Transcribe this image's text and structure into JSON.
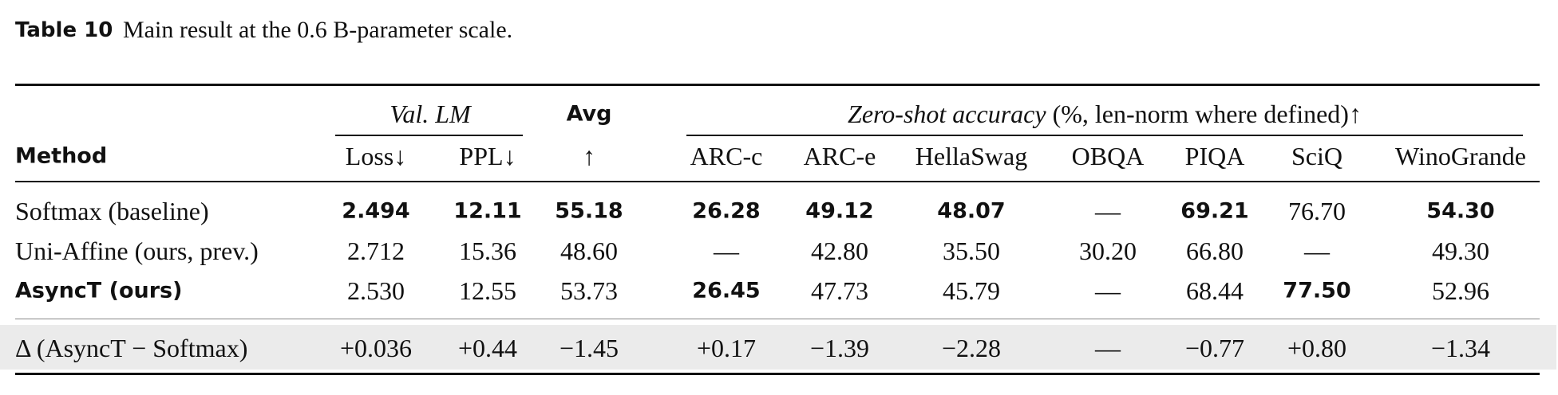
{
  "caption": {
    "label": "Table 10",
    "text": "Main result at the 0.6 B-parameter scale."
  },
  "table": {
    "header": {
      "val_lm": "Val. LM",
      "avg": "Avg",
      "zero_shot": "Zero-shot accuracy",
      "zero_shot_note": "(%, len-norm where defined)↑",
      "columns": [
        "Method",
        "Loss↓",
        "PPL↓",
        "↑",
        "ARC-c",
        "ARC-e",
        "HellaSwag",
        "OBQA",
        "PIQA",
        "SciQ",
        "WinoGrande"
      ]
    },
    "rows": [
      [
        "Softmax (baseline)",
        "2.494",
        "12.11",
        "55.18",
        "26.28",
        "49.12",
        "48.07",
        "—",
        "69.21",
        "76.70",
        "54.30"
      ],
      [
        "Uni-Affine (ours, prev.)",
        "2.712",
        "15.36",
        "48.60",
        "—",
        "42.80",
        "35.50",
        "30.20",
        "66.80",
        "—",
        "49.30"
      ],
      [
        "AsyncT (ours)",
        "2.530",
        "12.55",
        "53.73",
        "26.45",
        "47.73",
        "45.79",
        "—",
        "68.44",
        "77.50",
        "52.96"
      ],
      [
        "Δ (AsyncT − Softmax)",
        "+0.036",
        "+0.44",
        "−1.45",
        "+0.17",
        "−1.39",
        "−2.28",
        "—",
        "−0.77",
        "+0.80",
        "−1.34"
      ]
    ]
  }
}
